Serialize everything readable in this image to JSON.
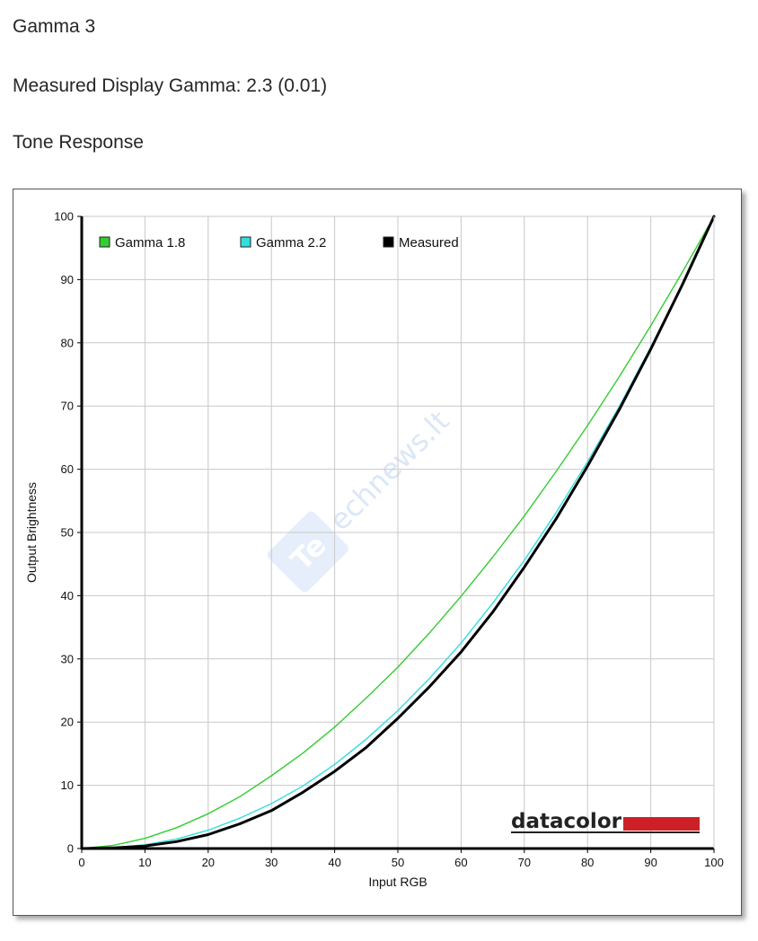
{
  "headings": {
    "gamma": "Gamma 3",
    "measured": "Measured Display Gamma: 2.3 (0.01)",
    "tone": "Tone Response"
  },
  "watermark": {
    "text": "echnews.lt",
    "badge": "Te",
    "color": "#cfe0f5"
  },
  "brand": {
    "text": "datacolor",
    "bar_color": "#cc2026"
  },
  "chart_data": {
    "type": "line",
    "title": "",
    "xlabel": "Input RGB",
    "ylabel": "Output Brightness",
    "xlim": [
      0,
      100
    ],
    "ylim": [
      0,
      100
    ],
    "xticks": [
      0,
      10,
      20,
      30,
      40,
      50,
      60,
      70,
      80,
      90,
      100
    ],
    "yticks": [
      0,
      10,
      20,
      30,
      40,
      50,
      60,
      70,
      80,
      90,
      100
    ],
    "grid": true,
    "legend_position": "top-left",
    "x": [
      0,
      5,
      10,
      15,
      20,
      25,
      30,
      35,
      40,
      45,
      50,
      55,
      60,
      65,
      70,
      75,
      80,
      85,
      90,
      95,
      100
    ],
    "series": [
      {
        "name": "Gamma 1.8",
        "color": "#33cc33",
        "values": [
          0,
          0.5,
          1.6,
          3.3,
          5.5,
          8.2,
          11.5,
          15.1,
          19.2,
          23.8,
          28.7,
          34.1,
          39.9,
          46.1,
          52.6,
          59.6,
          66.9,
          74.6,
          82.7,
          91.2,
          100
        ]
      },
      {
        "name": "Gamma 2.2",
        "color": "#33dddd",
        "values": [
          0,
          0.1,
          0.6,
          1.5,
          2.9,
          4.8,
          7.1,
          9.9,
          13.3,
          17.3,
          21.8,
          26.9,
          32.5,
          38.8,
          45.6,
          53.1,
          61.2,
          69.9,
          79.3,
          89.3,
          100
        ]
      },
      {
        "name": "Measured",
        "color": "#000000",
        "values": [
          0,
          0.1,
          0.4,
          1.1,
          2.2,
          3.9,
          6.0,
          8.9,
          12.2,
          16.0,
          20.6,
          25.6,
          31.1,
          37.4,
          44.5,
          52.1,
          60.5,
          69.4,
          79.0,
          89.2,
          100
        ]
      }
    ]
  }
}
